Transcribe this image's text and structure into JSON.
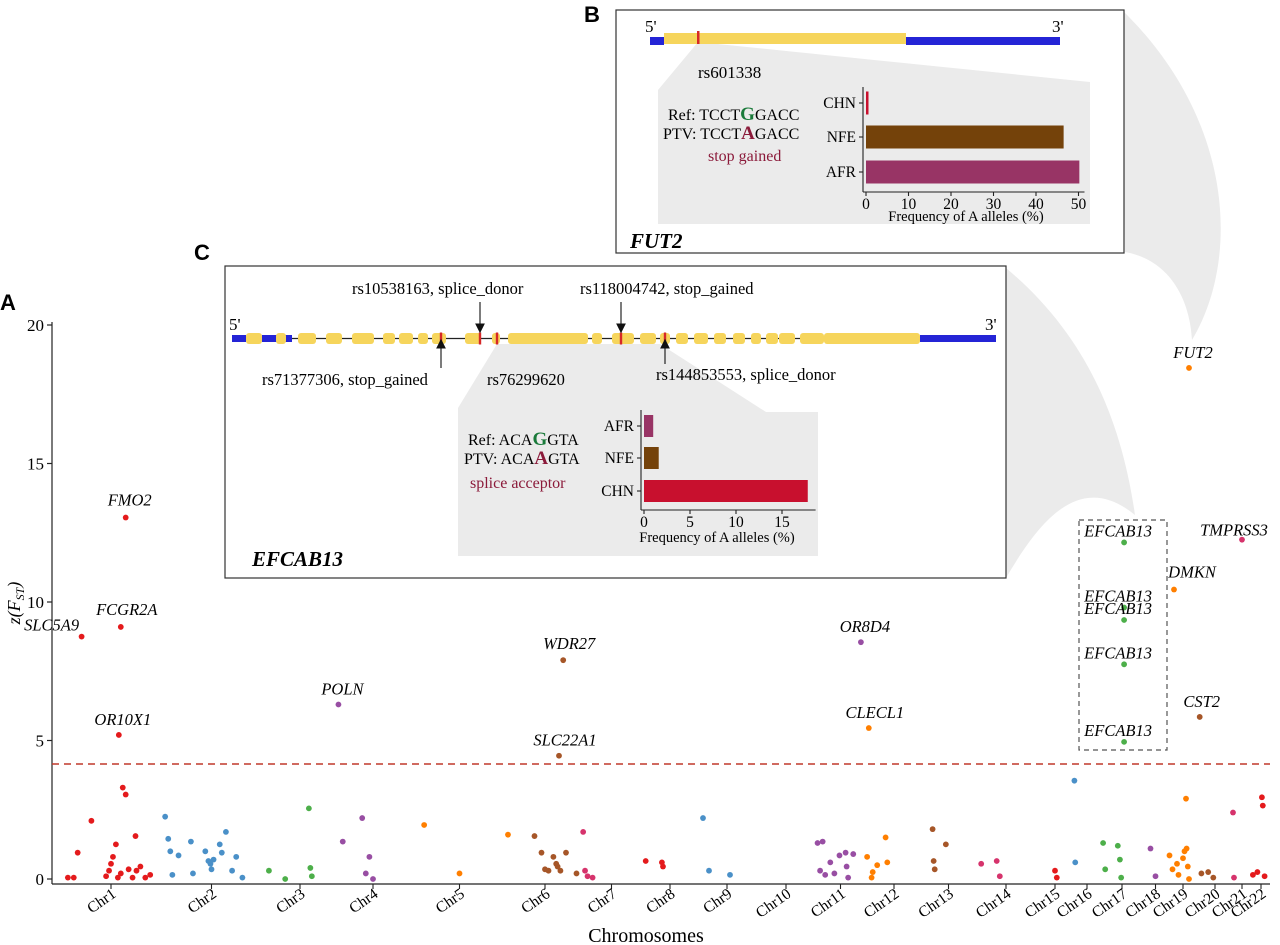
{
  "panels": {
    "a": "A",
    "b": "B",
    "c": "C"
  },
  "colors": {
    "chr_palette": [
      "#e41a1c",
      "#4a90c8",
      "#4daf4a",
      "#984ea3",
      "#ff7f00",
      "#a65628",
      "#d6336c"
    ],
    "threshold_line": "#c0392b",
    "utr": "#2424d6",
    "exon": "#f6d55c",
    "variant_mark": "#d62828",
    "callout_fill": "#ebebeb",
    "inset_border": "#333333",
    "ref_allele": "#1a7a3a",
    "ptv_allele": "#8b1a3a",
    "consequence": "#8b1a3a",
    "pop_AFR": "#983465",
    "pop_NFE": "#74420a",
    "pop_CHN": "#c8102e"
  },
  "chart_data": {
    "type": "scatter",
    "xlabel": "Chromosomes",
    "ylabel_main": "z(F",
    "ylabel_sub": "ST",
    "ylabel_close": ")",
    "ylim": [
      0,
      20
    ],
    "yticks": [
      0,
      5,
      10,
      15,
      20
    ],
    "threshold": 4.15,
    "chromosomes": [
      "Chr1",
      "Chr2",
      "Chr3",
      "Chr4",
      "Chr5",
      "Chr6",
      "Chr7",
      "Chr8",
      "Chr9",
      "Chr10",
      "Chr11",
      "Chr12",
      "Chr13",
      "Chr14",
      "Chr15",
      "Chr16",
      "Chr17",
      "Chr18",
      "Chr19",
      "Chr20",
      "Chr21",
      "Chr22"
    ],
    "points": [
      {
        "chr": 1,
        "pos": 0.06,
        "z": 0.05
      },
      {
        "chr": 1,
        "pos": 0.12,
        "z": 0.05
      },
      {
        "chr": 1,
        "pos": 0.16,
        "z": 0.95
      },
      {
        "chr": 1,
        "pos": 0.3,
        "z": 2.1
      },
      {
        "chr": 1,
        "pos": 0.45,
        "z": 0.1
      },
      {
        "chr": 1,
        "pos": 0.48,
        "z": 0.3
      },
      {
        "chr": 1,
        "pos": 0.5,
        "z": 0.55
      },
      {
        "chr": 1,
        "pos": 0.52,
        "z": 0.8
      },
      {
        "chr": 1,
        "pos": 0.55,
        "z": 1.25
      },
      {
        "chr": 1,
        "pos": 0.57,
        "z": 0.05
      },
      {
        "chr": 1,
        "pos": 0.6,
        "z": 0.2
      },
      {
        "chr": 1,
        "pos": 0.62,
        "z": 3.3
      },
      {
        "chr": 1,
        "pos": 0.65,
        "z": 3.05
      },
      {
        "chr": 1,
        "pos": 0.68,
        "z": 0.35
      },
      {
        "chr": 1,
        "pos": 0.72,
        "z": 0.05
      },
      {
        "chr": 1,
        "pos": 0.76,
        "z": 0.3
      },
      {
        "chr": 1,
        "pos": 0.8,
        "z": 0.45
      },
      {
        "chr": 1,
        "pos": 0.85,
        "z": 0.05
      },
      {
        "chr": 1,
        "pos": 0.75,
        "z": 1.55
      },
      {
        "chr": 1,
        "pos": 0.9,
        "z": 0.15
      },
      {
        "chr": 1,
        "pos": 0.2,
        "z": 8.75,
        "label": "SLC5A9"
      },
      {
        "chr": 1,
        "pos": 0.6,
        "z": 9.1,
        "label": "FCGR2A"
      },
      {
        "chr": 1,
        "pos": 0.65,
        "z": 13.05,
        "label": "FMO2"
      },
      {
        "chr": 1,
        "pos": 0.58,
        "z": 5.2,
        "label": "OR10X1"
      },
      {
        "chr": 2,
        "pos": 0.05,
        "z": 2.25
      },
      {
        "chr": 2,
        "pos": 0.08,
        "z": 1.45
      },
      {
        "chr": 2,
        "pos": 0.1,
        "z": 1.0
      },
      {
        "chr": 2,
        "pos": 0.12,
        "z": 0.15
      },
      {
        "chr": 2,
        "pos": 0.18,
        "z": 0.85
      },
      {
        "chr": 2,
        "pos": 0.3,
        "z": 1.35
      },
      {
        "chr": 2,
        "pos": 0.32,
        "z": 0.2
      },
      {
        "chr": 2,
        "pos": 0.44,
        "z": 1.0
      },
      {
        "chr": 2,
        "pos": 0.47,
        "z": 0.65
      },
      {
        "chr": 2,
        "pos": 0.49,
        "z": 0.55
      },
      {
        "chr": 2,
        "pos": 0.5,
        "z": 0.35
      },
      {
        "chr": 2,
        "pos": 0.52,
        "z": 0.7
      },
      {
        "chr": 2,
        "pos": 0.58,
        "z": 1.25
      },
      {
        "chr": 2,
        "pos": 0.6,
        "z": 0.95
      },
      {
        "chr": 2,
        "pos": 0.64,
        "z": 1.7
      },
      {
        "chr": 2,
        "pos": 0.7,
        "z": 0.3
      },
      {
        "chr": 2,
        "pos": 0.74,
        "z": 0.8
      },
      {
        "chr": 2,
        "pos": 0.8,
        "z": 0.05
      },
      {
        "chr": 3,
        "pos": 0.08,
        "z": 0.3
      },
      {
        "chr": 3,
        "pos": 0.3,
        "z": 0.0
      },
      {
        "chr": 3,
        "pos": 0.62,
        "z": 2.55
      },
      {
        "chr": 3,
        "pos": 0.64,
        "z": 0.4
      },
      {
        "chr": 3,
        "pos": 0.66,
        "z": 0.1
      },
      {
        "chr": 4,
        "pos": 0.02,
        "z": 6.3,
        "label": "POLN"
      },
      {
        "chr": 4,
        "pos": 0.08,
        "z": 1.35
      },
      {
        "chr": 4,
        "pos": 0.35,
        "z": 2.2
      },
      {
        "chr": 4,
        "pos": 0.4,
        "z": 0.2
      },
      {
        "chr": 4,
        "pos": 0.45,
        "z": 0.8
      },
      {
        "chr": 4,
        "pos": 0.5,
        "z": 0.0
      },
      {
        "chr": 5,
        "pos": 0.15,
        "z": 1.95
      },
      {
        "chr": 5,
        "pos": 0.5,
        "z": 0.2
      },
      {
        "chr": 5,
        "pos": 0.98,
        "z": 1.6
      },
      {
        "chr": 6,
        "pos": 0.35,
        "z": 1.55
      },
      {
        "chr": 6,
        "pos": 0.45,
        "z": 0.95
      },
      {
        "chr": 6,
        "pos": 0.5,
        "z": 0.35
      },
      {
        "chr": 6,
        "pos": 0.55,
        "z": 0.3
      },
      {
        "chr": 6,
        "pos": 0.62,
        "z": 0.8
      },
      {
        "chr": 6,
        "pos": 0.66,
        "z": 0.55
      },
      {
        "chr": 6,
        "pos": 0.68,
        "z": 0.45
      },
      {
        "chr": 6,
        "pos": 0.72,
        "z": 0.3
      },
      {
        "chr": 6,
        "pos": 0.7,
        "z": 4.45,
        "label": "SLC22A1"
      },
      {
        "chr": 6,
        "pos": 0.76,
        "z": 7.9,
        "label": "WDR27"
      },
      {
        "chr": 6,
        "pos": 0.8,
        "z": 0.95
      },
      {
        "chr": 6,
        "pos": 0.95,
        "z": 0.2
      },
      {
        "chr": 7,
        "pos": 0.05,
        "z": 1.7
      },
      {
        "chr": 7,
        "pos": 0.08,
        "z": 0.3
      },
      {
        "chr": 7,
        "pos": 0.12,
        "z": 0.1
      },
      {
        "chr": 7,
        "pos": 0.2,
        "z": 0.05
      },
      {
        "chr": 8,
        "pos": 0.05,
        "z": 0.65
      },
      {
        "chr": 8,
        "pos": 0.35,
        "z": 0.6
      },
      {
        "chr": 8,
        "pos": 0.37,
        "z": 0.45
      },
      {
        "chr": 9,
        "pos": 0.1,
        "z": 2.2
      },
      {
        "chr": 9,
        "pos": 0.2,
        "z": 0.3
      },
      {
        "chr": 9,
        "pos": 0.55,
        "z": 0.15
      },
      {
        "chr": 11,
        "pos": 0.05,
        "z": 1.3
      },
      {
        "chr": 11,
        "pos": 0.1,
        "z": 0.3
      },
      {
        "chr": 11,
        "pos": 0.15,
        "z": 1.35
      },
      {
        "chr": 11,
        "pos": 0.2,
        "z": 0.15
      },
      {
        "chr": 11,
        "pos": 0.3,
        "z": 0.6
      },
      {
        "chr": 11,
        "pos": 0.38,
        "z": 0.2
      },
      {
        "chr": 11,
        "pos": 0.48,
        "z": 0.85
      },
      {
        "chr": 11,
        "pos": 0.6,
        "z": 0.95
      },
      {
        "chr": 11,
        "pos": 0.62,
        "z": 0.45
      },
      {
        "chr": 11,
        "pos": 0.65,
        "z": 0.05
      },
      {
        "chr": 11,
        "pos": 0.75,
        "z": 0.9
      },
      {
        "chr": 11,
        "pos": 0.9,
        "z": 8.55,
        "label": "OR8D4"
      },
      {
        "chr": 12,
        "pos": 0.05,
        "z": 5.45,
        "label": "CLECL1"
      },
      {
        "chr": 12,
        "pos": 0.02,
        "z": 0.8
      },
      {
        "chr": 12,
        "pos": 0.1,
        "z": 0.05
      },
      {
        "chr": 12,
        "pos": 0.12,
        "z": 0.25
      },
      {
        "chr": 12,
        "pos": 0.2,
        "z": 0.5
      },
      {
        "chr": 12,
        "pos": 0.35,
        "z": 1.5
      },
      {
        "chr": 12,
        "pos": 0.38,
        "z": 0.6
      },
      {
        "chr": 13,
        "pos": 0.2,
        "z": 1.8
      },
      {
        "chr": 13,
        "pos": 0.22,
        "z": 0.65
      },
      {
        "chr": 13,
        "pos": 0.24,
        "z": 0.35
      },
      {
        "chr": 13,
        "pos": 0.45,
        "z": 1.25
      },
      {
        "chr": 14,
        "pos": 0.1,
        "z": 0.55
      },
      {
        "chr": 14,
        "pos": 0.35,
        "z": 0.65
      },
      {
        "chr": 14,
        "pos": 0.4,
        "z": 0.1
      },
      {
        "chr": 15,
        "pos": 0.5,
        "z": 0.3
      },
      {
        "chr": 15,
        "pos": 0.55,
        "z": 0.05
      },
      {
        "chr": 16,
        "pos": 0.05,
        "z": 3.55
      },
      {
        "chr": 16,
        "pos": 0.08,
        "z": 0.6
      },
      {
        "chr": 17,
        "pos": 0.05,
        "z": 1.3
      },
      {
        "chr": 17,
        "pos": 0.1,
        "z": 0.35
      },
      {
        "chr": 17,
        "pos": 0.4,
        "z": 1.2
      },
      {
        "chr": 17,
        "pos": 0.45,
        "z": 0.7
      },
      {
        "chr": 17,
        "pos": 0.48,
        "z": 0.05
      },
      {
        "chr": 17,
        "pos": 0.55,
        "z": 12.15,
        "label": "EFCAB13"
      },
      {
        "chr": 17,
        "pos": 0.55,
        "z": 9.8,
        "label": "EFCAB13"
      },
      {
        "chr": 17,
        "pos": 0.55,
        "z": 9.35,
        "label": "EFCAB13"
      },
      {
        "chr": 17,
        "pos": 0.55,
        "z": 7.75,
        "label": "EFCAB13"
      },
      {
        "chr": 17,
        "pos": 0.55,
        "z": 4.95,
        "label": "EFCAB13"
      },
      {
        "chr": 18,
        "pos": 0.3,
        "z": 1.1
      },
      {
        "chr": 18,
        "pos": 0.5,
        "z": 0.1
      },
      {
        "chr": 19,
        "pos": 0.05,
        "z": 0.85
      },
      {
        "chr": 19,
        "pos": 0.15,
        "z": 0.35
      },
      {
        "chr": 19,
        "pos": 0.3,
        "z": 0.55
      },
      {
        "chr": 19,
        "pos": 0.35,
        "z": 0.15
      },
      {
        "chr": 19,
        "pos": 0.5,
        "z": 0.75
      },
      {
        "chr": 19,
        "pos": 0.55,
        "z": 1.0
      },
      {
        "chr": 19,
        "pos": 0.6,
        "z": 2.9
      },
      {
        "chr": 19,
        "pos": 0.62,
        "z": 1.1
      },
      {
        "chr": 19,
        "pos": 0.66,
        "z": 0.45
      },
      {
        "chr": 19,
        "pos": 0.7,
        "z": 0.0
      },
      {
        "chr": 19,
        "pos": 0.2,
        "z": 10.45,
        "label": "DMKN"
      },
      {
        "chr": 19,
        "pos": 0.7,
        "z": 18.45,
        "label": "FUT2"
      },
      {
        "chr": 20,
        "pos": 0.05,
        "z": 5.85,
        "label": "CST2"
      },
      {
        "chr": 20,
        "pos": 0.1,
        "z": 0.2
      },
      {
        "chr": 20,
        "pos": 0.3,
        "z": 0.25
      },
      {
        "chr": 20,
        "pos": 0.45,
        "z": 0.05
      },
      {
        "chr": 21,
        "pos": 0.05,
        "z": 2.4
      },
      {
        "chr": 21,
        "pos": 0.1,
        "z": 0.05
      },
      {
        "chr": 21,
        "pos": 0.5,
        "z": 12.25,
        "label": "TMPRSS3"
      },
      {
        "chr": 22,
        "pos": 0.05,
        "z": 0.15
      },
      {
        "chr": 22,
        "pos": 0.3,
        "z": 0.25
      },
      {
        "chr": 22,
        "pos": 0.55,
        "z": 2.95
      },
      {
        "chr": 22,
        "pos": 0.6,
        "z": 2.65
      },
      {
        "chr": 22,
        "pos": 0.7,
        "z": 0.1
      }
    ]
  },
  "inset_b": {
    "gene": "FUT2",
    "five_prime": "5'",
    "three_prime": "3'",
    "variant": "rs601338",
    "ref_label": "Ref: ",
    "ref_pre": "TCCT",
    "ref_allele": "G",
    "ref_post": "GACC",
    "ptv_label": "PTV: ",
    "ptv_pre": "TCCT",
    "ptv_allele": "A",
    "ptv_post": "GACC",
    "consequence": "stop gained",
    "bar_chart": {
      "type": "bar",
      "orientation": "horizontal",
      "xlabel": "Frequency of A alleles (%)",
      "xlim": [
        0,
        50
      ],
      "xticks": [
        0,
        10,
        20,
        30,
        40,
        50
      ],
      "categories": [
        "CHN",
        "NFE",
        "AFR"
      ],
      "values": [
        0.3,
        46.5,
        50.2
      ]
    }
  },
  "inset_c": {
    "gene": "EFCAB13",
    "five_prime": "5'",
    "three_prime": "3'",
    "variants_above": [
      {
        "label": "rs10538163, splice_donor"
      },
      {
        "label": "rs118004742, stop_gained"
      }
    ],
    "variants_below": [
      {
        "label": "rs71377306, stop_gained"
      },
      {
        "label": "rs76299620"
      },
      {
        "label": "rs144853553, splice_donor"
      }
    ],
    "ref_label": "Ref: ",
    "ref_pre": "ACA",
    "ref_allele": "G",
    "ref_post": "GTA",
    "ptv_label": "PTV: ",
    "ptv_pre": "ACA",
    "ptv_allele": "A",
    "ptv_post": "GTA",
    "consequence": "splice acceptor",
    "bar_chart": {
      "type": "bar",
      "orientation": "horizontal",
      "xlabel": "Frequency of A alleles (%)",
      "xlim": [
        0,
        18
      ],
      "xticks": [
        0,
        5,
        10,
        15
      ],
      "xtick_labels": [
        "0",
        "5",
        "10",
        "15"
      ],
      "categories": [
        "AFR",
        "NFE",
        "CHN"
      ],
      "values": [
        1.0,
        1.6,
        17.8
      ]
    }
  }
}
